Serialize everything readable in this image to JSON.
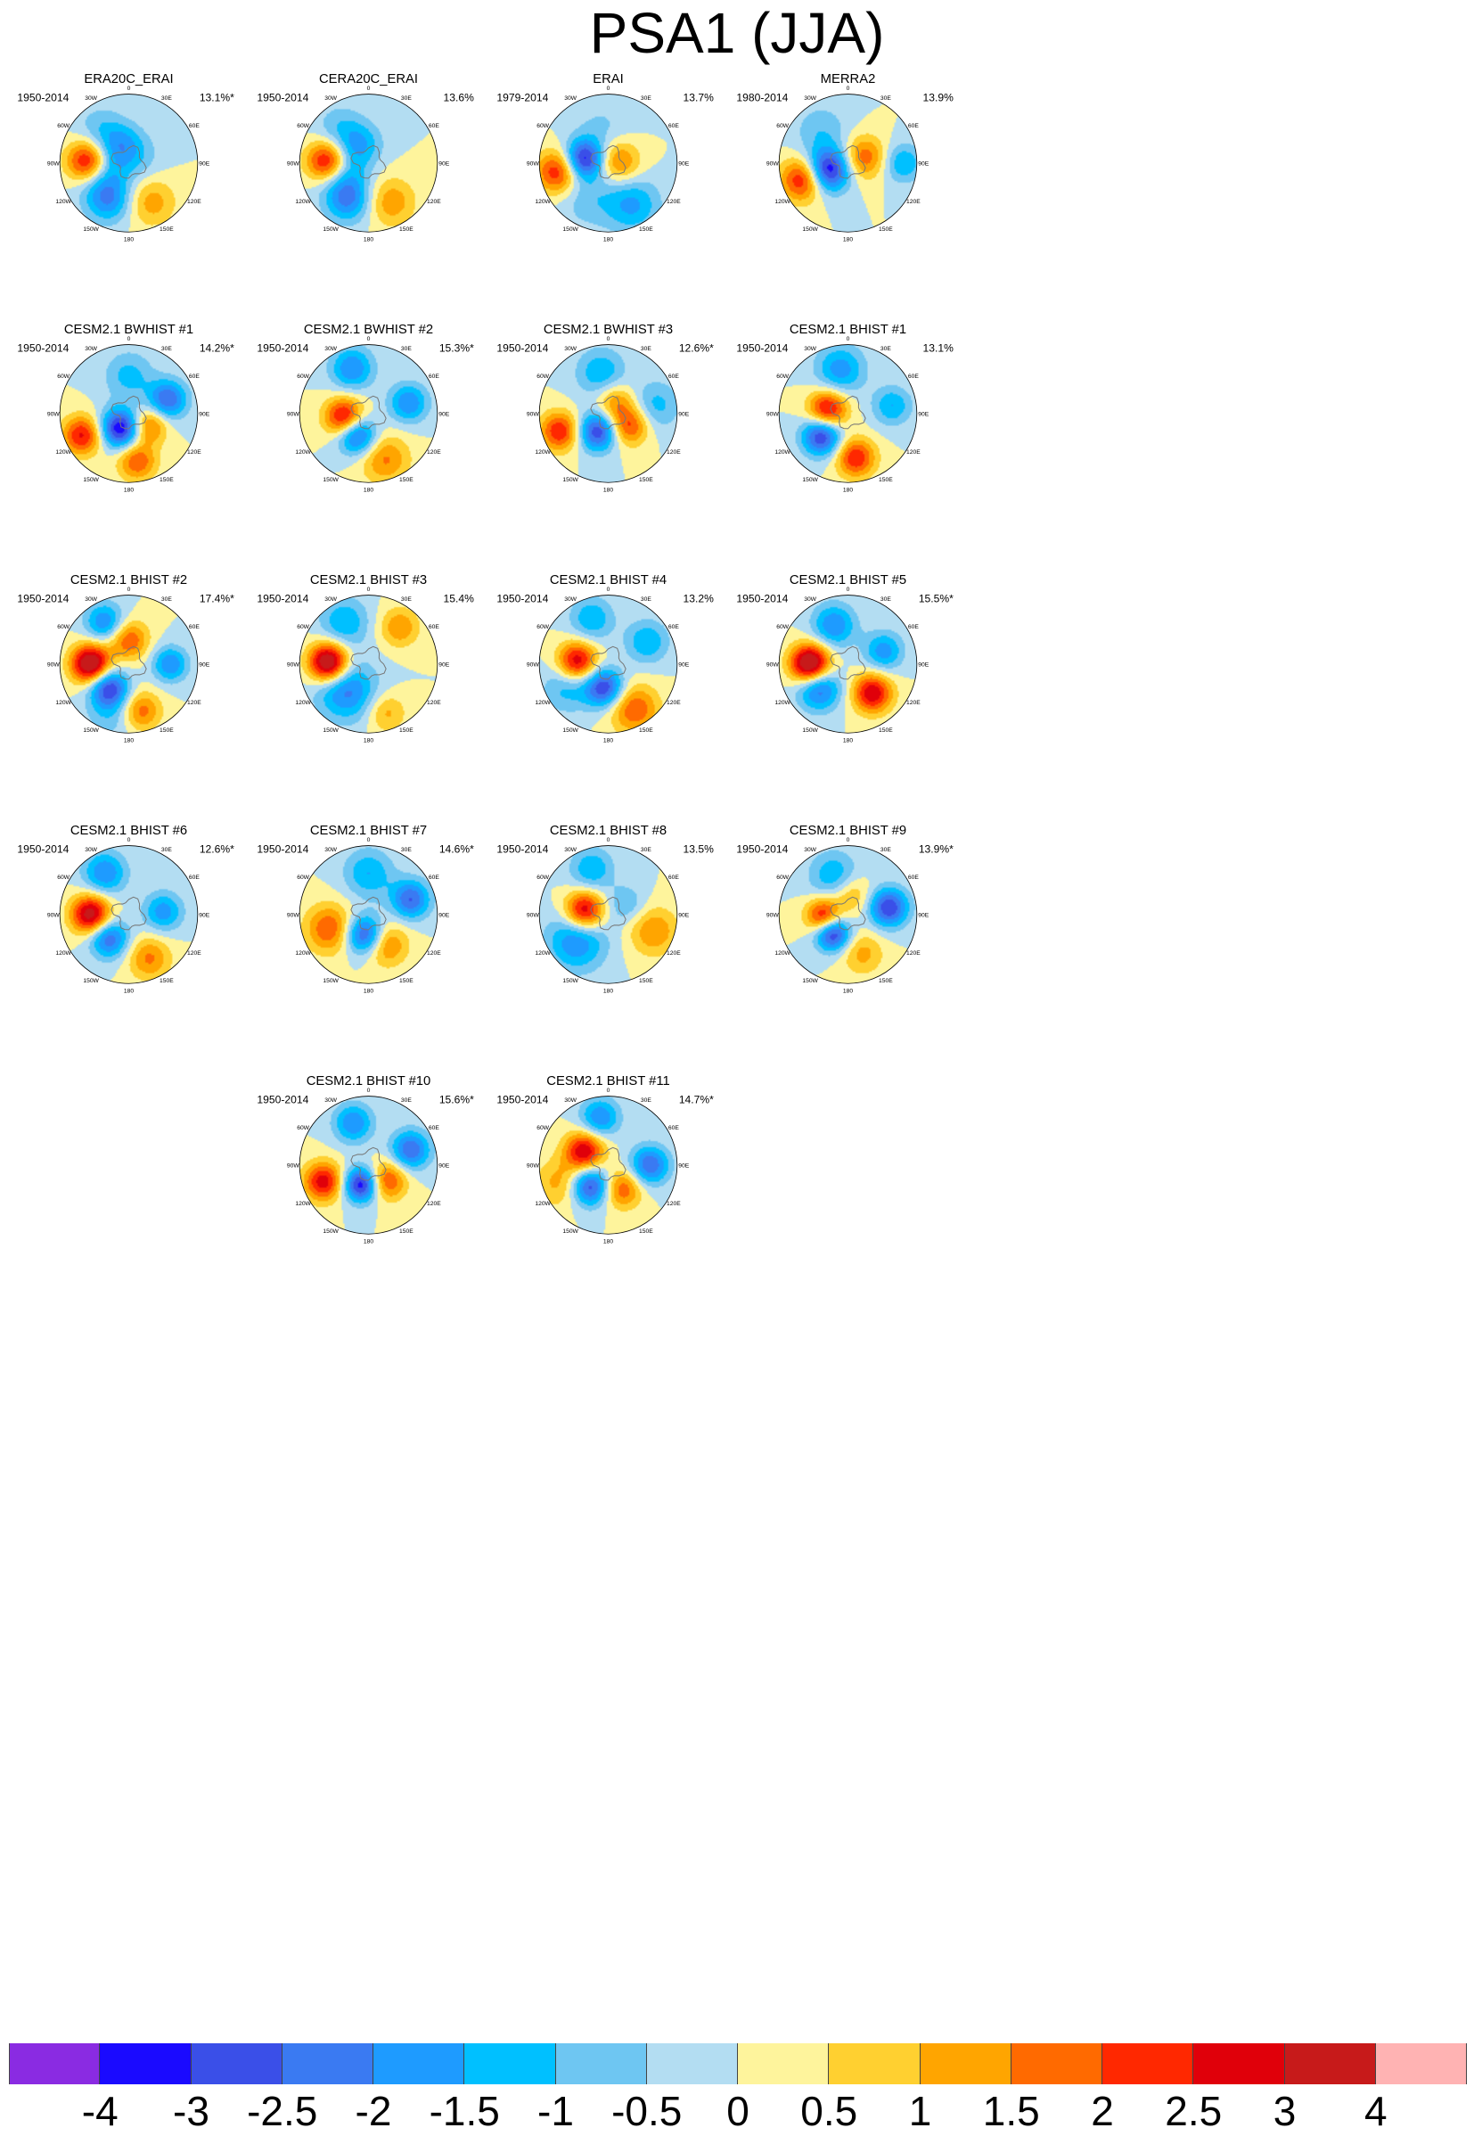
{
  "title": "PSA1 (JJA)",
  "chart_data": {
    "type": "heatmap",
    "projection": "south-polar-stereographic",
    "longitude_labels": [
      "0",
      "30E",
      "60E",
      "90E",
      "120E",
      "150E",
      "180",
      "150W",
      "120W",
      "90W",
      "60W",
      "30W"
    ],
    "panels": [
      {
        "title": "ERA20C_ERAI",
        "period": "1950-2014",
        "variance": "13.1%*",
        "centers": [
          {
            "lon": -88,
            "r": 0.58,
            "v": 4.2,
            "s": 0.22
          },
          {
            "lon": -95,
            "r": 0.45,
            "v": -2.2,
            "s": 0.26
          },
          {
            "lon": -150,
            "r": 0.6,
            "v": -2.0,
            "s": 0.24
          },
          {
            "lon": 150,
            "r": 0.65,
            "v": 1.3,
            "s": 0.25
          },
          {
            "lon": -20,
            "r": 0.3,
            "v": -1.2,
            "s": 0.22
          },
          {
            "lon": -40,
            "r": 0.65,
            "v": -0.8,
            "s": 0.25
          },
          {
            "lon": 60,
            "r": 0.15,
            "v": -0.7,
            "s": 0.25
          }
        ]
      },
      {
        "title": "CERA20C_ERAI",
        "period": "1950-2014",
        "variance": "13.6%",
        "centers": [
          {
            "lon": -88,
            "r": 0.58,
            "v": 4.3,
            "s": 0.22
          },
          {
            "lon": -95,
            "r": 0.45,
            "v": -2.3,
            "s": 0.26
          },
          {
            "lon": -150,
            "r": 0.6,
            "v": -2.1,
            "s": 0.24
          },
          {
            "lon": 150,
            "r": 0.65,
            "v": 1.4,
            "s": 0.25
          },
          {
            "lon": -20,
            "r": 0.3,
            "v": -1.2,
            "s": 0.22
          },
          {
            "lon": -40,
            "r": 0.65,
            "v": -0.9,
            "s": 0.25
          }
        ]
      },
      {
        "title": "ERAI",
        "period": "1979-2014",
        "variance": "13.7%",
        "centers": [
          {
            "lon": -80,
            "r": 0.35,
            "v": -3.2,
            "s": 0.2
          },
          {
            "lon": -100,
            "r": 0.75,
            "v": 2.5,
            "s": 0.22
          },
          {
            "lon": 80,
            "r": 0.15,
            "v": 1.8,
            "s": 0.22
          },
          {
            "lon": 150,
            "r": 0.7,
            "v": -1.6,
            "s": 0.28
          },
          {
            "lon": -150,
            "r": 0.6,
            "v": -0.8,
            "s": 0.3
          },
          {
            "lon": -10,
            "r": 0.5,
            "v": -0.6,
            "s": 0.3
          }
        ]
      },
      {
        "title": "MERRA2",
        "period": "1980-2014",
        "variance": "13.9%",
        "centers": [
          {
            "lon": -110,
            "r": 0.3,
            "v": -3.5,
            "s": 0.22
          },
          {
            "lon": -110,
            "r": 0.7,
            "v": 2.7,
            "s": 0.22
          },
          {
            "lon": 70,
            "r": 0.25,
            "v": 1.9,
            "s": 0.22
          },
          {
            "lon": 90,
            "r": 0.8,
            "v": -1.5,
            "s": 0.2
          },
          {
            "lon": -40,
            "r": 0.6,
            "v": -0.9,
            "s": 0.28
          }
        ]
      },
      {
        "title": "CESM2.1 BWHIST #1",
        "period": "1950-2014",
        "variance": "14.2%*",
        "centers": [
          {
            "lon": -150,
            "r": 0.25,
            "v": -3.5,
            "s": 0.2
          },
          {
            "lon": -115,
            "r": 0.75,
            "v": 2.6,
            "s": 0.2
          },
          {
            "lon": 170,
            "r": 0.7,
            "v": 2.0,
            "s": 0.2
          },
          {
            "lon": 120,
            "r": 0.35,
            "v": 1.9,
            "s": 0.18
          },
          {
            "lon": 70,
            "r": 0.6,
            "v": -2.5,
            "s": 0.2
          },
          {
            "lon": 0,
            "r": 0.55,
            "v": -1.2,
            "s": 0.25
          }
        ]
      },
      {
        "title": "CESM2.1 BWHIST #2",
        "period": "1950-2014",
        "variance": "15.3%*",
        "centers": [
          {
            "lon": -100,
            "r": 0.35,
            "v": 3.2,
            "s": 0.2
          },
          {
            "lon": -150,
            "r": 0.35,
            "v": -3.0,
            "s": 0.2
          },
          {
            "lon": -20,
            "r": 0.7,
            "v": -2.0,
            "s": 0.22
          },
          {
            "lon": 75,
            "r": 0.6,
            "v": -2.0,
            "s": 0.2
          },
          {
            "lon": 160,
            "r": 0.7,
            "v": 1.6,
            "s": 0.25
          }
        ]
      },
      {
        "title": "CESM2.1 BWHIST #3",
        "period": "1950-2014",
        "variance": "12.6%*",
        "centers": [
          {
            "lon": -150,
            "r": 0.3,
            "v": -3.0,
            "s": 0.2
          },
          {
            "lon": -110,
            "r": 0.75,
            "v": 2.5,
            "s": 0.2
          },
          {
            "lon": 120,
            "r": 0.35,
            "v": 2.2,
            "s": 0.2
          },
          {
            "lon": 30,
            "r": 0.2,
            "v": 1.5,
            "s": 0.2
          },
          {
            "lon": -10,
            "r": 0.6,
            "v": -1.5,
            "s": 0.25
          },
          {
            "lon": 80,
            "r": 0.7,
            "v": -1.2,
            "s": 0.25
          }
        ]
      },
      {
        "title": "CESM2.1 BHIST #1",
        "period": "1950-2014",
        "variance": "13.1%",
        "centers": [
          {
            "lon": -80,
            "r": 0.3,
            "v": 3.0,
            "s": 0.2
          },
          {
            "lon": -130,
            "r": 0.5,
            "v": -3.2,
            "s": 0.2
          },
          {
            "lon": 170,
            "r": 0.65,
            "v": 2.5,
            "s": 0.2
          },
          {
            "lon": -10,
            "r": 0.65,
            "v": -1.8,
            "s": 0.25
          },
          {
            "lon": 80,
            "r": 0.65,
            "v": -1.5,
            "s": 0.2
          }
        ]
      },
      {
        "title": "CESM2.1 BHIST #2",
        "period": "1950-2014",
        "variance": "17.4%*",
        "centers": [
          {
            "lon": -90,
            "r": 0.55,
            "v": 4.0,
            "s": 0.2
          },
          {
            "lon": -140,
            "r": 0.45,
            "v": -3.0,
            "s": 0.2
          },
          {
            "lon": 0,
            "r": 0.35,
            "v": 2.0,
            "s": 0.2
          },
          {
            "lon": -30,
            "r": 0.7,
            "v": -2.0,
            "s": 0.2
          },
          {
            "lon": 90,
            "r": 0.6,
            "v": -2.0,
            "s": 0.18
          },
          {
            "lon": 165,
            "r": 0.7,
            "v": 1.8,
            "s": 0.2
          },
          {
            "lon": -160,
            "r": 0.8,
            "v": -0.8,
            "s": 0.25
          }
        ]
      },
      {
        "title": "CESM2.1 BHIST #3",
        "period": "1950-2014",
        "variance": "15.4%",
        "centers": [
          {
            "lon": -88,
            "r": 0.58,
            "v": 4.2,
            "s": 0.2
          },
          {
            "lon": -140,
            "r": 0.5,
            "v": -2.2,
            "s": 0.3
          },
          {
            "lon": -30,
            "r": 0.7,
            "v": -1.5,
            "s": 0.25
          },
          {
            "lon": 40,
            "r": 0.7,
            "v": 1.5,
            "s": 0.2
          },
          {
            "lon": 160,
            "r": 0.75,
            "v": 1.2,
            "s": 0.2
          }
        ]
      },
      {
        "title": "CESM2.1 BHIST #4",
        "period": "1950-2014",
        "variance": "13.2%",
        "centers": [
          {
            "lon": -85,
            "r": 0.45,
            "v": 3.0,
            "s": 0.2
          },
          {
            "lon": -170,
            "r": 0.35,
            "v": -3.0,
            "s": 0.2
          },
          {
            "lon": 150,
            "r": 0.75,
            "v": 2.0,
            "s": 0.25
          },
          {
            "lon": -20,
            "r": 0.7,
            "v": -1.5,
            "s": 0.22
          },
          {
            "lon": 60,
            "r": 0.65,
            "v": -1.5,
            "s": 0.22
          },
          {
            "lon": -120,
            "r": 0.7,
            "v": -1.2,
            "s": 0.25
          }
        ]
      },
      {
        "title": "CESM2.1 BHIST #5",
        "period": "1950-2014",
        "variance": "15.5%*",
        "centers": [
          {
            "lon": -90,
            "r": 0.55,
            "v": 4.3,
            "s": 0.2
          },
          {
            "lon": -130,
            "r": 0.55,
            "v": -2.5,
            "s": 0.22
          },
          {
            "lon": 140,
            "r": 0.55,
            "v": 3.0,
            "s": 0.2
          },
          {
            "lon": -20,
            "r": 0.6,
            "v": -2.0,
            "s": 0.22
          },
          {
            "lon": 70,
            "r": 0.55,
            "v": -1.8,
            "s": 0.2
          }
        ]
      },
      {
        "title": "CESM2.1 BHIST #6",
        "period": "1950-2014",
        "variance": "12.6%*",
        "centers": [
          {
            "lon": -90,
            "r": 0.55,
            "v": 3.5,
            "s": 0.2
          },
          {
            "lon": -140,
            "r": 0.45,
            "v": -2.5,
            "s": 0.2
          },
          {
            "lon": -30,
            "r": 0.7,
            "v": -2.0,
            "s": 0.22
          },
          {
            "lon": 85,
            "r": 0.5,
            "v": -1.8,
            "s": 0.2
          },
          {
            "lon": 155,
            "r": 0.7,
            "v": 1.6,
            "s": 0.22
          }
        ]
      },
      {
        "title": "CESM2.1 BHIST #7",
        "period": "1950-2014",
        "variance": "14.6%*",
        "centers": [
          {
            "lon": -170,
            "r": 0.3,
            "v": -3.0,
            "s": 0.2
          },
          {
            "lon": -110,
            "r": 0.6,
            "v": 2.0,
            "s": 0.25
          },
          {
            "lon": 150,
            "r": 0.5,
            "v": 1.8,
            "s": 0.22
          },
          {
            "lon": 70,
            "r": 0.65,
            "v": -2.5,
            "s": 0.2
          },
          {
            "lon": 0,
            "r": 0.6,
            "v": -1.5,
            "s": 0.25
          }
        ]
      },
      {
        "title": "CESM2.1 BHIST #8",
        "period": "1950-2014",
        "variance": "13.5%",
        "centers": [
          {
            "lon": -80,
            "r": 0.35,
            "v": 3.2,
            "s": 0.2
          },
          {
            "lon": -130,
            "r": 0.6,
            "v": -2.0,
            "s": 0.3
          },
          {
            "lon": -20,
            "r": 0.7,
            "v": -1.5,
            "s": 0.22
          },
          {
            "lon": 110,
            "r": 0.7,
            "v": 1.5,
            "s": 0.25
          },
          {
            "lon": 60,
            "r": 0.3,
            "v": -1.0,
            "s": 0.2
          }
        ]
      },
      {
        "title": "CESM2.1 BHIST #9",
        "period": "1950-2014",
        "variance": "13.9%*",
        "centers": [
          {
            "lon": -95,
            "r": 0.35,
            "v": 3.0,
            "s": 0.18
          },
          {
            "lon": -140,
            "r": 0.35,
            "v": -3.5,
            "s": 0.18
          },
          {
            "lon": 80,
            "r": 0.6,
            "v": -3.0,
            "s": 0.2
          },
          {
            "lon": -20,
            "r": 0.6,
            "v": -1.5,
            "s": 0.25
          },
          {
            "lon": 10,
            "r": 0.3,
            "v": 1.2,
            "s": 0.2
          },
          {
            "lon": 160,
            "r": 0.6,
            "v": 1.2,
            "s": 0.22
          }
        ]
      },
      {
        "title": "CESM2.1 BHIST #10",
        "period": "1950-2014",
        "variance": "15.6%*",
        "centers": [
          {
            "lon": -160,
            "r": 0.3,
            "v": -3.5,
            "s": 0.18
          },
          {
            "lon": -110,
            "r": 0.7,
            "v": 2.8,
            "s": 0.2
          },
          {
            "lon": 130,
            "r": 0.35,
            "v": 2.2,
            "s": 0.2
          },
          {
            "lon": 70,
            "r": 0.65,
            "v": -2.5,
            "s": 0.2
          },
          {
            "lon": -20,
            "r": 0.65,
            "v": -2.0,
            "s": 0.2
          }
        ]
      },
      {
        "title": "CESM2.1 BHIST #11",
        "period": "1950-2014",
        "variance": "14.7%*",
        "centers": [
          {
            "lon": -60,
            "r": 0.4,
            "v": 3.0,
            "s": 0.2
          },
          {
            "lon": -140,
            "r": 0.4,
            "v": -3.0,
            "s": 0.2
          },
          {
            "lon": 150,
            "r": 0.4,
            "v": 2.0,
            "s": 0.2
          },
          {
            "lon": 90,
            "r": 0.6,
            "v": -2.5,
            "s": 0.2
          },
          {
            "lon": -10,
            "r": 0.7,
            "v": -2.0,
            "s": 0.2
          },
          {
            "lon": -110,
            "r": 0.75,
            "v": 1.2,
            "s": 0.25
          }
        ]
      }
    ],
    "colorbar": {
      "levels": [
        "-4",
        "-3",
        "-2.5",
        "-2",
        "-1.5",
        "-1",
        "-0.5",
        "0",
        "0.5",
        "1",
        "1.5",
        "2",
        "2.5",
        "3",
        "4"
      ],
      "level_values": [
        -4,
        -3,
        -2.5,
        -2,
        -1.5,
        -1,
        -0.5,
        0,
        0.5,
        1,
        1.5,
        2,
        2.5,
        3,
        4
      ],
      "colors": [
        "#8a2be2",
        "#1a0aff",
        "#3a4fe8",
        "#3a7af2",
        "#1e9bff",
        "#00c0ff",
        "#6ec6f2",
        "#b3ddf2",
        "#fef49c",
        "#ffd030",
        "#ffa500",
        "#ff6a00",
        "#ff2800",
        "#e0000a",
        "#c71a1a",
        "#ffb3b3"
      ]
    }
  }
}
